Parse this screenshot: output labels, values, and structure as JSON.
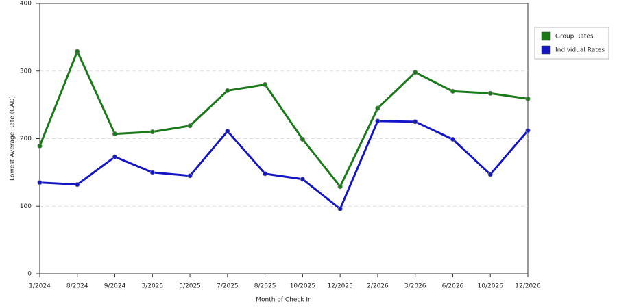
{
  "chart_data": {
    "type": "line",
    "x_label": "Month of Check In",
    "y_label": "Lowest Average Rate (CAD)",
    "categories": [
      "1/2024",
      "8/2024",
      "9/2024",
      "3/2025",
      "5/2025",
      "7/2025",
      "8/2025",
      "10/2025",
      "12/2025",
      "2/2026",
      "3/2026",
      "6/2026",
      "10/2026",
      "12/2026"
    ],
    "series": [
      {
        "name": "Group Rates",
        "color": "#1a7a1a",
        "values": [
          189,
          329,
          207,
          210,
          219,
          271,
          280,
          199,
          129,
          245,
          298,
          270,
          267,
          259
        ]
      },
      {
        "name": "Individual Rates",
        "color": "#1515c8",
        "values": [
          135,
          132,
          173,
          150,
          145,
          211,
          148,
          140,
          96,
          226,
          225,
          199,
          147,
          212
        ]
      }
    ],
    "ylim": [
      0,
      400
    ],
    "yticks": [
      0,
      100,
      200,
      300,
      400
    ],
    "grid": true,
    "legend": "right"
  }
}
